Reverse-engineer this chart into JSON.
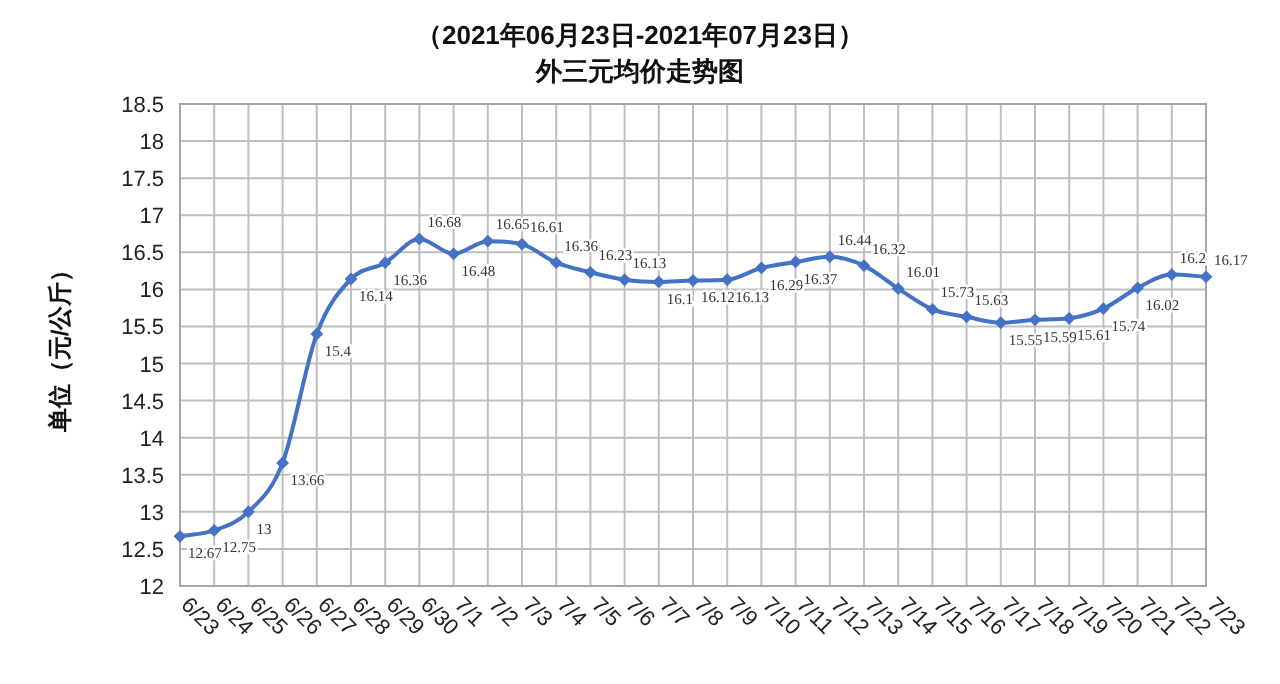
{
  "chart_data": {
    "type": "line",
    "title": "（2021年06月23日-2021年07月23日）",
    "subtitle": "外三元均价走势图",
    "ylabel": "单位（元/公斤）",
    "categories": [
      "6/23",
      "6/24",
      "6/25",
      "6/26",
      "6/27",
      "6/28",
      "6/29",
      "6/30",
      "7/1",
      "7/2",
      "7/3",
      "7/4",
      "7/5",
      "7/6",
      "7/7",
      "7/8",
      "7/9",
      "7/10",
      "7/11",
      "7/12",
      "7/13",
      "7/14",
      "7/15",
      "7/16",
      "7/17",
      "7/18",
      "7/19",
      "7/20",
      "7/21",
      "7/22",
      "7/23"
    ],
    "series": [
      {
        "color": "#4472c4",
        "values": [
          12.67,
          12.75,
          13,
          13.66,
          15.4,
          16.14,
          16.36,
          16.68,
          16.48,
          16.65,
          16.61,
          16.36,
          16.23,
          16.13,
          16.1,
          16.12,
          16.13,
          16.29,
          16.37,
          16.44,
          16.32,
          16.01,
          15.73,
          15.63,
          15.55,
          15.59,
          15.61,
          15.74,
          16.02,
          16.2,
          16.17
        ]
      }
    ],
    "ylim": [
      12,
      18.5
    ],
    "yticks": [
      12,
      12.5,
      13,
      13.5,
      14,
      14.5,
      15,
      15.5,
      16,
      16.5,
      17,
      17.5,
      18,
      18.5
    ],
    "grid": true,
    "marker": "diamond",
    "line_style": "solid",
    "data_labels": true
  }
}
